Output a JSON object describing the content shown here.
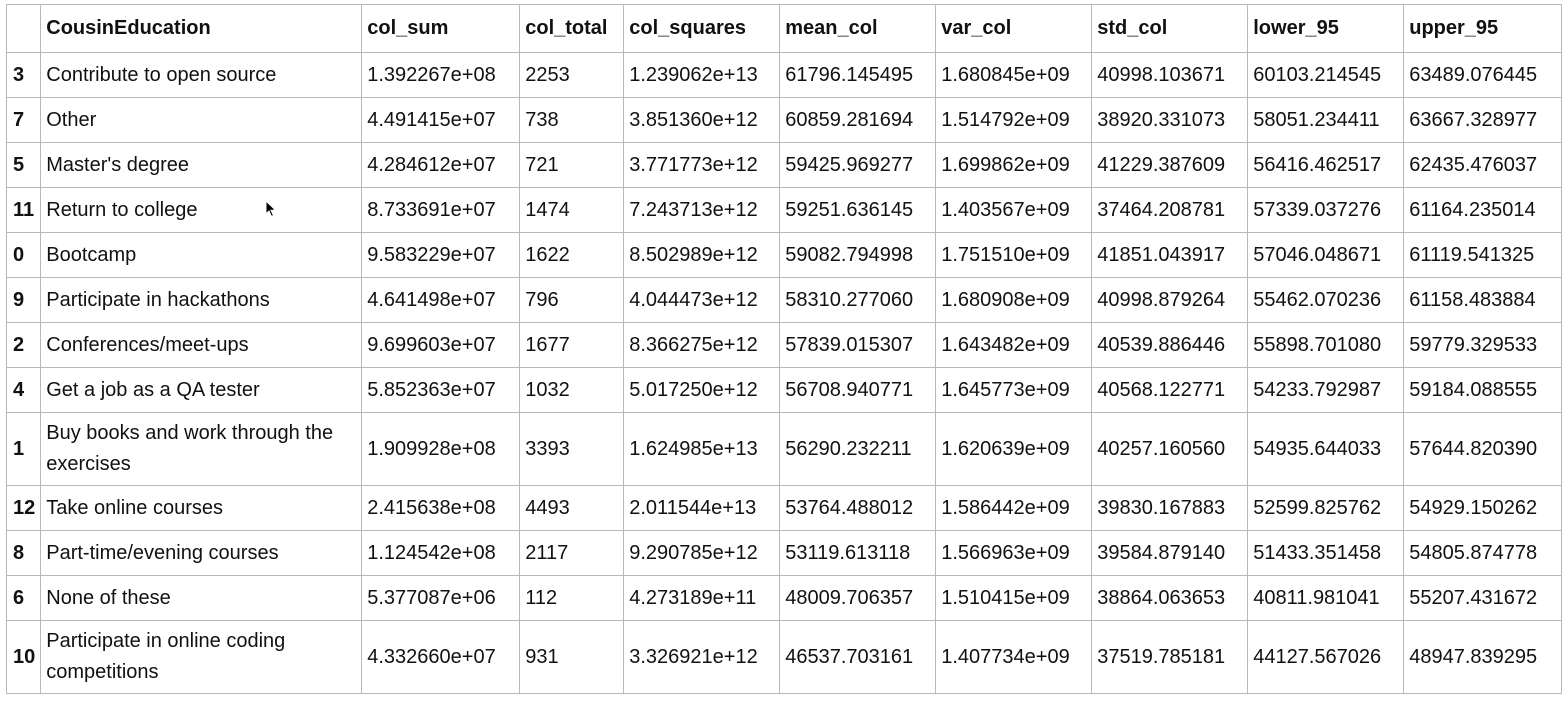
{
  "table": {
    "columns": [
      "",
      "CousinEducation",
      "col_sum",
      "col_total",
      "col_squares",
      "mean_col",
      "var_col",
      "std_col",
      "lower_95",
      "upper_95"
    ],
    "rows": [
      {
        "index": "3",
        "cells": [
          "Contribute to open source",
          "1.392267e+08",
          "2253",
          "1.239062e+13",
          "61796.145495",
          "1.680845e+09",
          "40998.103671",
          "60103.214545",
          "63489.076445"
        ]
      },
      {
        "index": "7",
        "cells": [
          "Other",
          "4.491415e+07",
          "738",
          "3.851360e+12",
          "60859.281694",
          "1.514792e+09",
          "38920.331073",
          "58051.234411",
          "63667.328977"
        ]
      },
      {
        "index": "5",
        "cells": [
          "Master's degree",
          "4.284612e+07",
          "721",
          "3.771773e+12",
          "59425.969277",
          "1.699862e+09",
          "41229.387609",
          "56416.462517",
          "62435.476037"
        ]
      },
      {
        "index": "11",
        "cells": [
          "Return to college",
          "8.733691e+07",
          "1474",
          "7.243713e+12",
          "59251.636145",
          "1.403567e+09",
          "37464.208781",
          "57339.037276",
          "61164.235014"
        ]
      },
      {
        "index": "0",
        "cells": [
          "Bootcamp",
          "9.583229e+07",
          "1622",
          "8.502989e+12",
          "59082.794998",
          "1.751510e+09",
          "41851.043917",
          "57046.048671",
          "61119.541325"
        ]
      },
      {
        "index": "9",
        "cells": [
          "Participate in hackathons",
          "4.641498e+07",
          "796",
          "4.044473e+12",
          "58310.277060",
          "1.680908e+09",
          "40998.879264",
          "55462.070236",
          "61158.483884"
        ]
      },
      {
        "index": "2",
        "cells": [
          "Conferences/meet-ups",
          "9.699603e+07",
          "1677",
          "8.366275e+12",
          "57839.015307",
          "1.643482e+09",
          "40539.886446",
          "55898.701080",
          "59779.329533"
        ]
      },
      {
        "index": "4",
        "cells": [
          "Get a job as a QA tester",
          "5.852363e+07",
          "1032",
          "5.017250e+12",
          "56708.940771",
          "1.645773e+09",
          "40568.122771",
          "54233.792987",
          "59184.088555"
        ]
      },
      {
        "index": "1",
        "cells": [
          "Buy books and work through the exercises",
          "1.909928e+08",
          "3393",
          "1.624985e+13",
          "56290.232211",
          "1.620639e+09",
          "40257.160560",
          "54935.644033",
          "57644.820390"
        ]
      },
      {
        "index": "12",
        "cells": [
          "Take online courses",
          "2.415638e+08",
          "4493",
          "2.011544e+13",
          "53764.488012",
          "1.586442e+09",
          "39830.167883",
          "52599.825762",
          "54929.150262"
        ]
      },
      {
        "index": "8",
        "cells": [
          "Part-time/evening courses",
          "1.124542e+08",
          "2117",
          "9.290785e+12",
          "53119.613118",
          "1.566963e+09",
          "39584.879140",
          "51433.351458",
          "54805.874778"
        ]
      },
      {
        "index": "6",
        "cells": [
          "None of these",
          "5.377087e+06",
          "112",
          "4.273189e+11",
          "48009.706357",
          "1.510415e+09",
          "38864.063653",
          "40811.981041",
          "55207.431672"
        ]
      },
      {
        "index": "10",
        "cells": [
          "Participate in online coding competitions",
          "4.332660e+07",
          "931",
          "3.326921e+12",
          "46537.703161",
          "1.407734e+09",
          "37519.785181",
          "44127.567026",
          "48947.839295"
        ]
      }
    ]
  },
  "cursor_icon": "mouse-pointer-icon"
}
